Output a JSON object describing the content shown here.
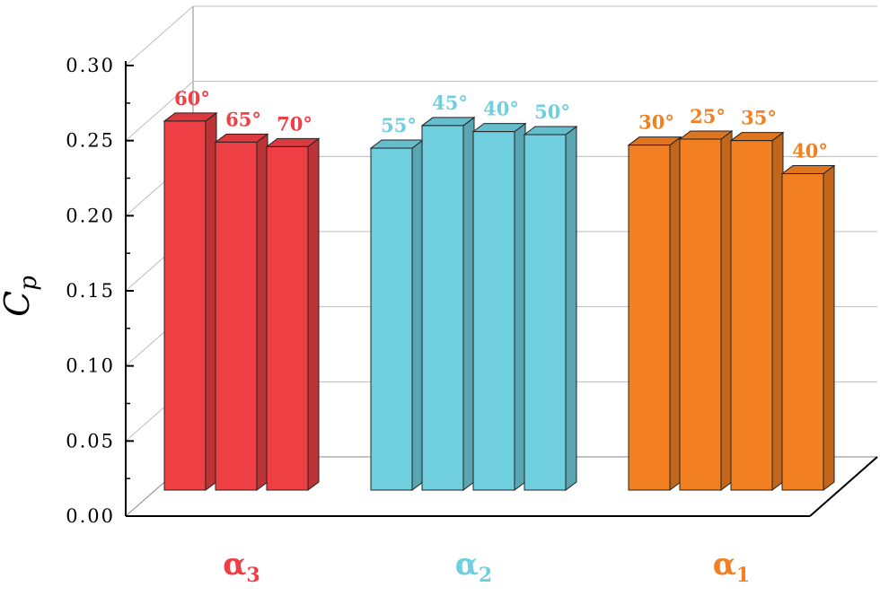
{
  "chart_data": {
    "type": "bar",
    "ylabel": "C",
    "ylabel_subscript": "p",
    "ylim": [
      0,
      0.3
    ],
    "yticks": [
      "0.00",
      "0.05",
      "0.10",
      "0.15",
      "0.20",
      "0.25",
      "0.30"
    ],
    "grid": true,
    "groups": [
      {
        "name": "α",
        "subscript": "3",
        "color": "#ee4044",
        "bars": [
          {
            "label": "60°",
            "value": 0.263
          },
          {
            "label": "65°",
            "value": 0.249
          },
          {
            "label": "70°",
            "value": 0.246
          }
        ]
      },
      {
        "name": "α",
        "subscript": "2",
        "color": "#6fcfde",
        "bars": [
          {
            "label": "55°",
            "value": 0.245
          },
          {
            "label": "45°",
            "value": 0.26
          },
          {
            "label": "40°",
            "value": 0.256
          },
          {
            "label": "50°",
            "value": 0.254
          }
        ]
      },
      {
        "name": "α",
        "subscript": "1",
        "color": "#f28022",
        "bars": [
          {
            "label": "30°",
            "value": 0.247
          },
          {
            "label": "25°",
            "value": 0.251
          },
          {
            "label": "35°",
            "value": 0.25
          },
          {
            "label": "40°",
            "value": 0.228
          }
        ]
      }
    ]
  }
}
